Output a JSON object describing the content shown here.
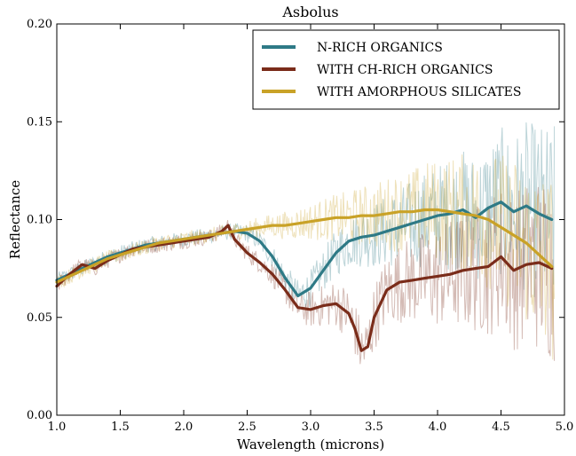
{
  "chart_data": {
    "type": "line",
    "title": "Asbolus",
    "xlabel": "Wavelength (microns)",
    "ylabel": "Reflectance",
    "xlim": [
      1.0,
      5.0
    ],
    "ylim": [
      0.0,
      0.2
    ],
    "xticks": [
      1.0,
      1.5,
      2.0,
      2.5,
      3.0,
      3.5,
      4.0,
      4.5,
      5.0
    ],
    "yticks": [
      0.0,
      0.05,
      0.1,
      0.15,
      0.2
    ],
    "xtick_labels": [
      "1.0",
      "1.5",
      "2.0",
      "2.5",
      "3.0",
      "3.5",
      "4.0",
      "4.5",
      "5.0"
    ],
    "ytick_labels": [
      "0.00",
      "0.05",
      "0.10",
      "0.15",
      "0.20"
    ],
    "grid": false,
    "legend_position": "top-right",
    "series": [
      {
        "name": "N-RICH ORGANICS",
        "color": "#2e7a86",
        "x": [
          1.0,
          1.1,
          1.2,
          1.3,
          1.4,
          1.5,
          1.6,
          1.7,
          1.8,
          1.9,
          2.0,
          2.1,
          2.2,
          2.3,
          2.4,
          2.5,
          2.6,
          2.7,
          2.8,
          2.9,
          3.0,
          3.1,
          3.2,
          3.3,
          3.4,
          3.5,
          3.6,
          3.7,
          3.8,
          3.9,
          4.0,
          4.1,
          4.2,
          4.3,
          4.4,
          4.5,
          4.6,
          4.7,
          4.8,
          4.9
        ],
        "y": [
          0.069,
          0.072,
          0.075,
          0.078,
          0.081,
          0.083,
          0.085,
          0.087,
          0.088,
          0.089,
          0.09,
          0.091,
          0.092,
          0.093,
          0.094,
          0.093,
          0.089,
          0.081,
          0.07,
          0.061,
          0.065,
          0.074,
          0.083,
          0.089,
          0.091,
          0.092,
          0.094,
          0.096,
          0.098,
          0.1,
          0.102,
          0.103,
          0.105,
          0.101,
          0.106,
          0.109,
          0.104,
          0.107,
          0.103,
          0.1
        ]
      },
      {
        "name": "WITH CH-RICH ORGANICS",
        "color": "#7a2c1a",
        "x": [
          1.0,
          1.1,
          1.2,
          1.3,
          1.4,
          1.5,
          1.6,
          1.7,
          1.8,
          1.9,
          2.0,
          2.1,
          2.2,
          2.3,
          2.35,
          2.4,
          2.5,
          2.6,
          2.7,
          2.8,
          2.9,
          3.0,
          3.1,
          3.2,
          3.3,
          3.35,
          3.4,
          3.45,
          3.5,
          3.6,
          3.7,
          3.8,
          3.9,
          4.0,
          4.1,
          4.2,
          4.3,
          4.4,
          4.5,
          4.6,
          4.7,
          4.8,
          4.9
        ],
        "y": [
          0.066,
          0.072,
          0.077,
          0.075,
          0.079,
          0.082,
          0.085,
          0.086,
          0.087,
          0.088,
          0.089,
          0.09,
          0.091,
          0.094,
          0.097,
          0.09,
          0.083,
          0.078,
          0.072,
          0.064,
          0.055,
          0.054,
          0.056,
          0.057,
          0.052,
          0.044,
          0.033,
          0.035,
          0.05,
          0.064,
          0.068,
          0.069,
          0.07,
          0.071,
          0.072,
          0.074,
          0.075,
          0.076,
          0.081,
          0.074,
          0.077,
          0.078,
          0.075
        ]
      },
      {
        "name": "WITH AMORPHOUS SILICATES",
        "color": "#c9a227",
        "x": [
          1.0,
          1.1,
          1.2,
          1.3,
          1.4,
          1.5,
          1.6,
          1.7,
          1.8,
          1.9,
          2.0,
          2.1,
          2.2,
          2.3,
          2.4,
          2.5,
          2.6,
          2.7,
          2.8,
          2.9,
          3.0,
          3.1,
          3.2,
          3.3,
          3.4,
          3.5,
          3.6,
          3.7,
          3.8,
          3.9,
          4.0,
          4.1,
          4.2,
          4.3,
          4.4,
          4.5,
          4.6,
          4.7,
          4.8,
          4.9
        ],
        "y": [
          0.068,
          0.071,
          0.074,
          0.077,
          0.08,
          0.082,
          0.084,
          0.086,
          0.088,
          0.089,
          0.09,
          0.091,
          0.092,
          0.093,
          0.094,
          0.095,
          0.096,
          0.097,
          0.097,
          0.098,
          0.099,
          0.1,
          0.101,
          0.101,
          0.102,
          0.102,
          0.103,
          0.104,
          0.104,
          0.105,
          0.105,
          0.104,
          0.103,
          0.102,
          0.1,
          0.096,
          0.092,
          0.088,
          0.082,
          0.076
        ]
      }
    ]
  }
}
